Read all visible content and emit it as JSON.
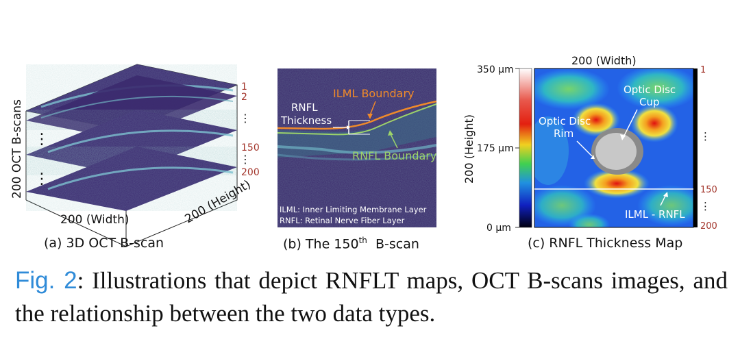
{
  "panel_a": {
    "caption": "(a) 3D OCT B-scan",
    "y_label": "200 OCT B-scans",
    "x_label": "200 (Width)",
    "depth_label": "200 (Height)",
    "slice_numbers": [
      "1",
      "2",
      "⋮",
      "150",
      "⋮",
      "200"
    ],
    "ellipsis_marks": [
      "⋮",
      "⋮"
    ]
  },
  "panel_b": {
    "caption_prefix": "(b) The 150",
    "caption_sup": "th",
    "caption_suffix": "B-scan",
    "ilml_boundary_label": "ILML Boundary",
    "rnfl_thickness_label_line1": "RNFL",
    "rnfl_thickness_label_line2": "Thickness",
    "rnfl_boundary_label": "RNFL Boundary",
    "legend_line1": "ILML: Inner Limiting Membrane Layer",
    "legend_line2": "RNFL: Retinal Nerve Fiber Layer"
  },
  "panel_c": {
    "caption": "(c) RNFL Thickness Map",
    "top_label": "200 (Width)",
    "left_label": "200 (Height)",
    "colorbar_ticks": [
      "350 µm",
      "175 µm",
      "0 µm"
    ],
    "row_numbers": [
      "1",
      "⋮",
      "150",
      "⋮",
      "200"
    ],
    "cup_label_line1": "Optic Disc",
    "cup_label_line2": "Cup",
    "rim_label_line1": "Optic Disc",
    "rim_label_line2": "Rim",
    "line_label": "ILML - RNFL"
  },
  "figure_caption": {
    "label": "Fig. 2",
    "text": ": Illustrations that depict RNFLT maps, OCT B-scans images, and the relationship between the two data types."
  },
  "colors": {
    "fig_label_blue": "#2f8bd8",
    "ilml_orange": "#f08a2a",
    "rnfl_green": "#9cd36a",
    "slice_number_red": "#a2342a",
    "oct_background": "#3a2a6a"
  }
}
